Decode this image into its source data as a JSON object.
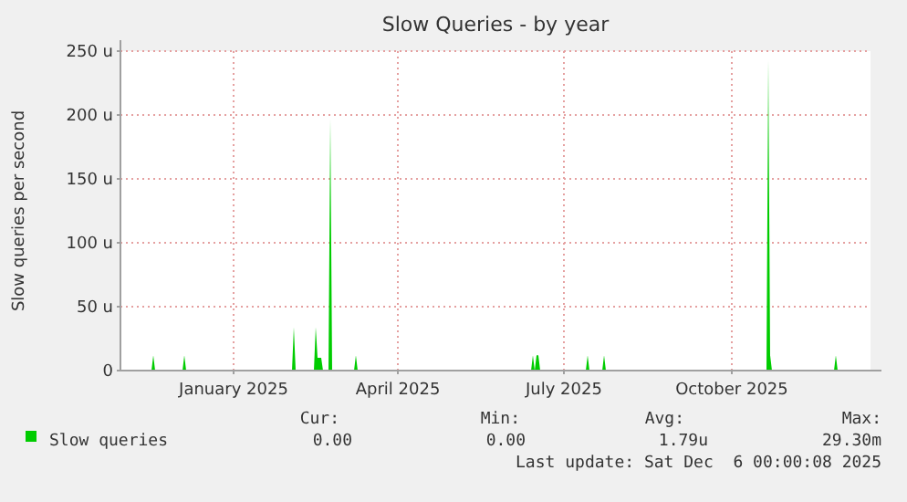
{
  "chart_data": {
    "type": "area",
    "title": "Slow Queries - by year",
    "ylabel": "Slow queries per second",
    "x": [
      "2024-10-31",
      "2024-11-17",
      "2024-11-18",
      "2024-11-19",
      "2024-12-04",
      "2024-12-05",
      "2024-12-06",
      "2025-02-02",
      "2025-02-03",
      "2025-02-04",
      "2025-02-14",
      "2025-02-15",
      "2025-02-16",
      "2025-02-17",
      "2025-02-18",
      "2025-02-19",
      "2025-02-22",
      "2025-02-23",
      "2025-02-24",
      "2025-03-08",
      "2025-03-09",
      "2025-03-10",
      "2025-06-13",
      "2025-06-14",
      "2025-06-15",
      "2025-06-16",
      "2025-06-17",
      "2025-06-18",
      "2025-07-13",
      "2025-07-14",
      "2025-07-15",
      "2025-07-22",
      "2025-07-23",
      "2025-07-24",
      "2025-10-20",
      "2025-10-21",
      "2025-10-22",
      "2025-10-23",
      "2025-11-26",
      "2025-11-27",
      "2025-11-28",
      "2025-12-06"
    ],
    "series": [
      {
        "name": "Slow queries",
        "color": "#00cc00",
        "values": [
          0,
          0,
          12,
          0,
          0,
          12,
          0,
          0,
          34,
          0,
          0,
          34,
          10,
          10,
          10,
          0,
          0,
          197,
          0,
          0,
          12,
          0,
          0,
          12,
          0,
          12,
          12,
          0,
          0,
          12,
          0,
          0,
          12,
          0,
          0,
          243,
          12,
          0,
          0,
          12,
          0,
          0
        ]
      }
    ],
    "xlim": [
      "2024-10-31",
      "2025-12-16"
    ],
    "xticks": [
      {
        "value": "2025-01-01",
        "label": "January 2025"
      },
      {
        "value": "2025-04-01",
        "label": "April 2025"
      },
      {
        "value": "2025-07-01",
        "label": "July 2025"
      },
      {
        "value": "2025-10-01",
        "label": "October 2025"
      }
    ],
    "ylim": [
      0,
      250
    ],
    "yticks": [
      0,
      {
        "value": 50,
        "label": "50 u"
      },
      {
        "value": 100,
        "label": "100 u"
      },
      {
        "value": 150,
        "label": "150 u"
      },
      {
        "value": 200,
        "label": "200 u"
      },
      {
        "value": 250,
        "label": "250 u"
      }
    ],
    "grid": true,
    "legend": "bottom",
    "annotations": [
      "Cur:",
      "Min:",
      "Avg:",
      "Max:",
      "0.00",
      "0.00",
      "1.79u",
      "29.30m",
      "Last update: Sat Dec  6 00:00:08 2025"
    ]
  }
}
